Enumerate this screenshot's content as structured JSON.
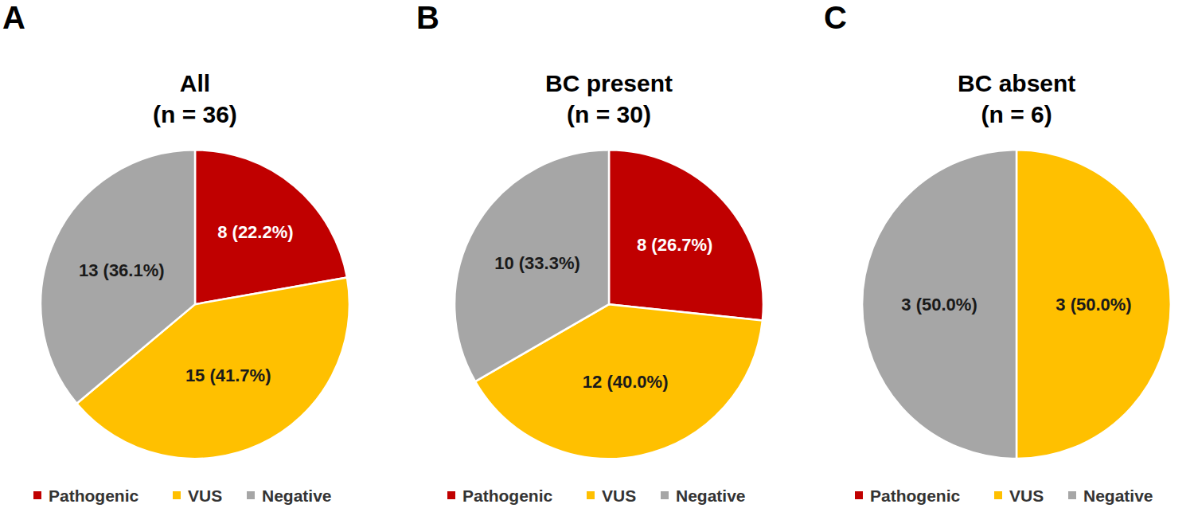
{
  "chart_data": [
    {
      "type": "pie",
      "panel_label": "A",
      "title": "All\n(n = 36)",
      "categories": [
        "Pathogenic",
        "VUS",
        "Negative"
      ],
      "values": [
        8,
        15,
        13
      ],
      "value_labels": [
        "8 (22.2%)",
        "15 (41.7%)",
        "13 (36.1%)"
      ],
      "colors": [
        "#c00000",
        "#ffc000",
        "#a6a6a6"
      ],
      "data_labels": true,
      "legend": "bottom"
    },
    {
      "type": "pie",
      "panel_label": "B",
      "title": "BC present\n(n = 30)",
      "categories": [
        "Pathogenic",
        "VUS",
        "Negative"
      ],
      "values": [
        8,
        12,
        10
      ],
      "value_labels": [
        "8 (26.7%)",
        "12 (40.0%)",
        "10 (33.3%)"
      ],
      "colors": [
        "#c00000",
        "#ffc000",
        "#a6a6a6"
      ],
      "data_labels": true,
      "legend": "bottom"
    },
    {
      "type": "pie",
      "panel_label": "C",
      "title": "BC absent\n(n = 6)",
      "categories": [
        "Pathogenic",
        "VUS",
        "Negative"
      ],
      "values": [
        0,
        3,
        3
      ],
      "value_labels": [
        null,
        "3 (50.0%)",
        "3 (50.0%)"
      ],
      "colors": [
        "#c00000",
        "#ffc000",
        "#a6a6a6"
      ],
      "data_labels": true,
      "legend": "bottom"
    }
  ]
}
